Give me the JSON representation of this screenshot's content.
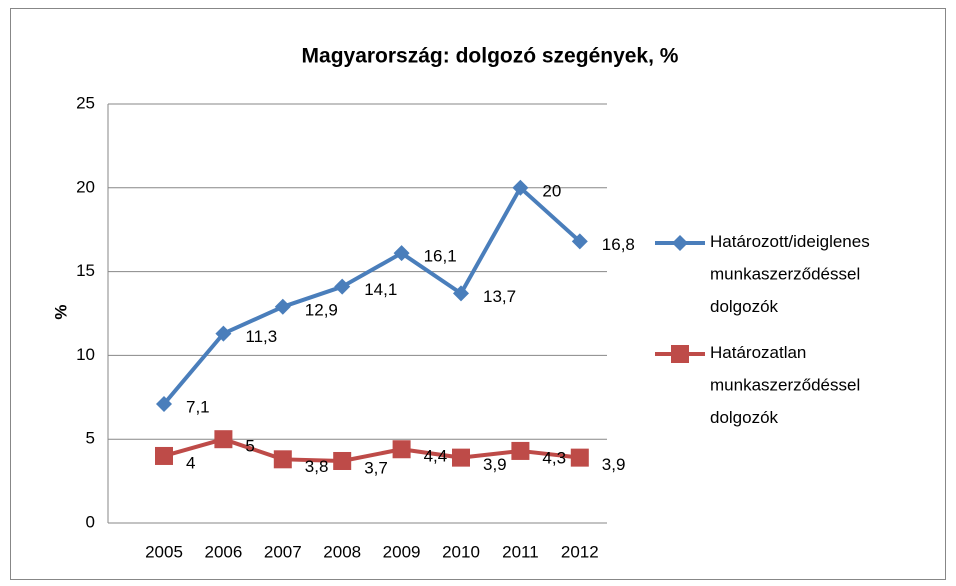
{
  "chart_data": {
    "type": "line",
    "title": "Magyarország: dolgozó szegények, %",
    "ylabel": "%",
    "categories": [
      "2005",
      "2006",
      "2007",
      "2008",
      "2009",
      "2010",
      "2011",
      "2012"
    ],
    "series": [
      {
        "name": "Határozott/ideiglenes munkaszerződéssel dolgozók",
        "color": "#4a7ebb",
        "marker": "diamond",
        "values": [
          7.1,
          11.3,
          12.9,
          14.1,
          16.1,
          13.7,
          20,
          16.8
        ],
        "value_labels": [
          "7,1",
          "11,3",
          "12,9",
          "14,1",
          "16,1",
          "13,7",
          "20",
          "16,8"
        ]
      },
      {
        "name": "Határozatlan munkaszerződéssel dolgozók",
        "color": "#be4b48",
        "marker": "square",
        "values": [
          4,
          5,
          3.8,
          3.7,
          4.4,
          3.9,
          4.3,
          3.9
        ],
        "value_labels": [
          "4",
          "5",
          "3,8",
          "3,7",
          "4,4",
          "3,9",
          "4,3",
          "3,9"
        ]
      }
    ],
    "ylim": [
      0,
      25
    ],
    "yticks": [
      0,
      5,
      10,
      15,
      20,
      25
    ],
    "grid": true,
    "legend": "right"
  }
}
